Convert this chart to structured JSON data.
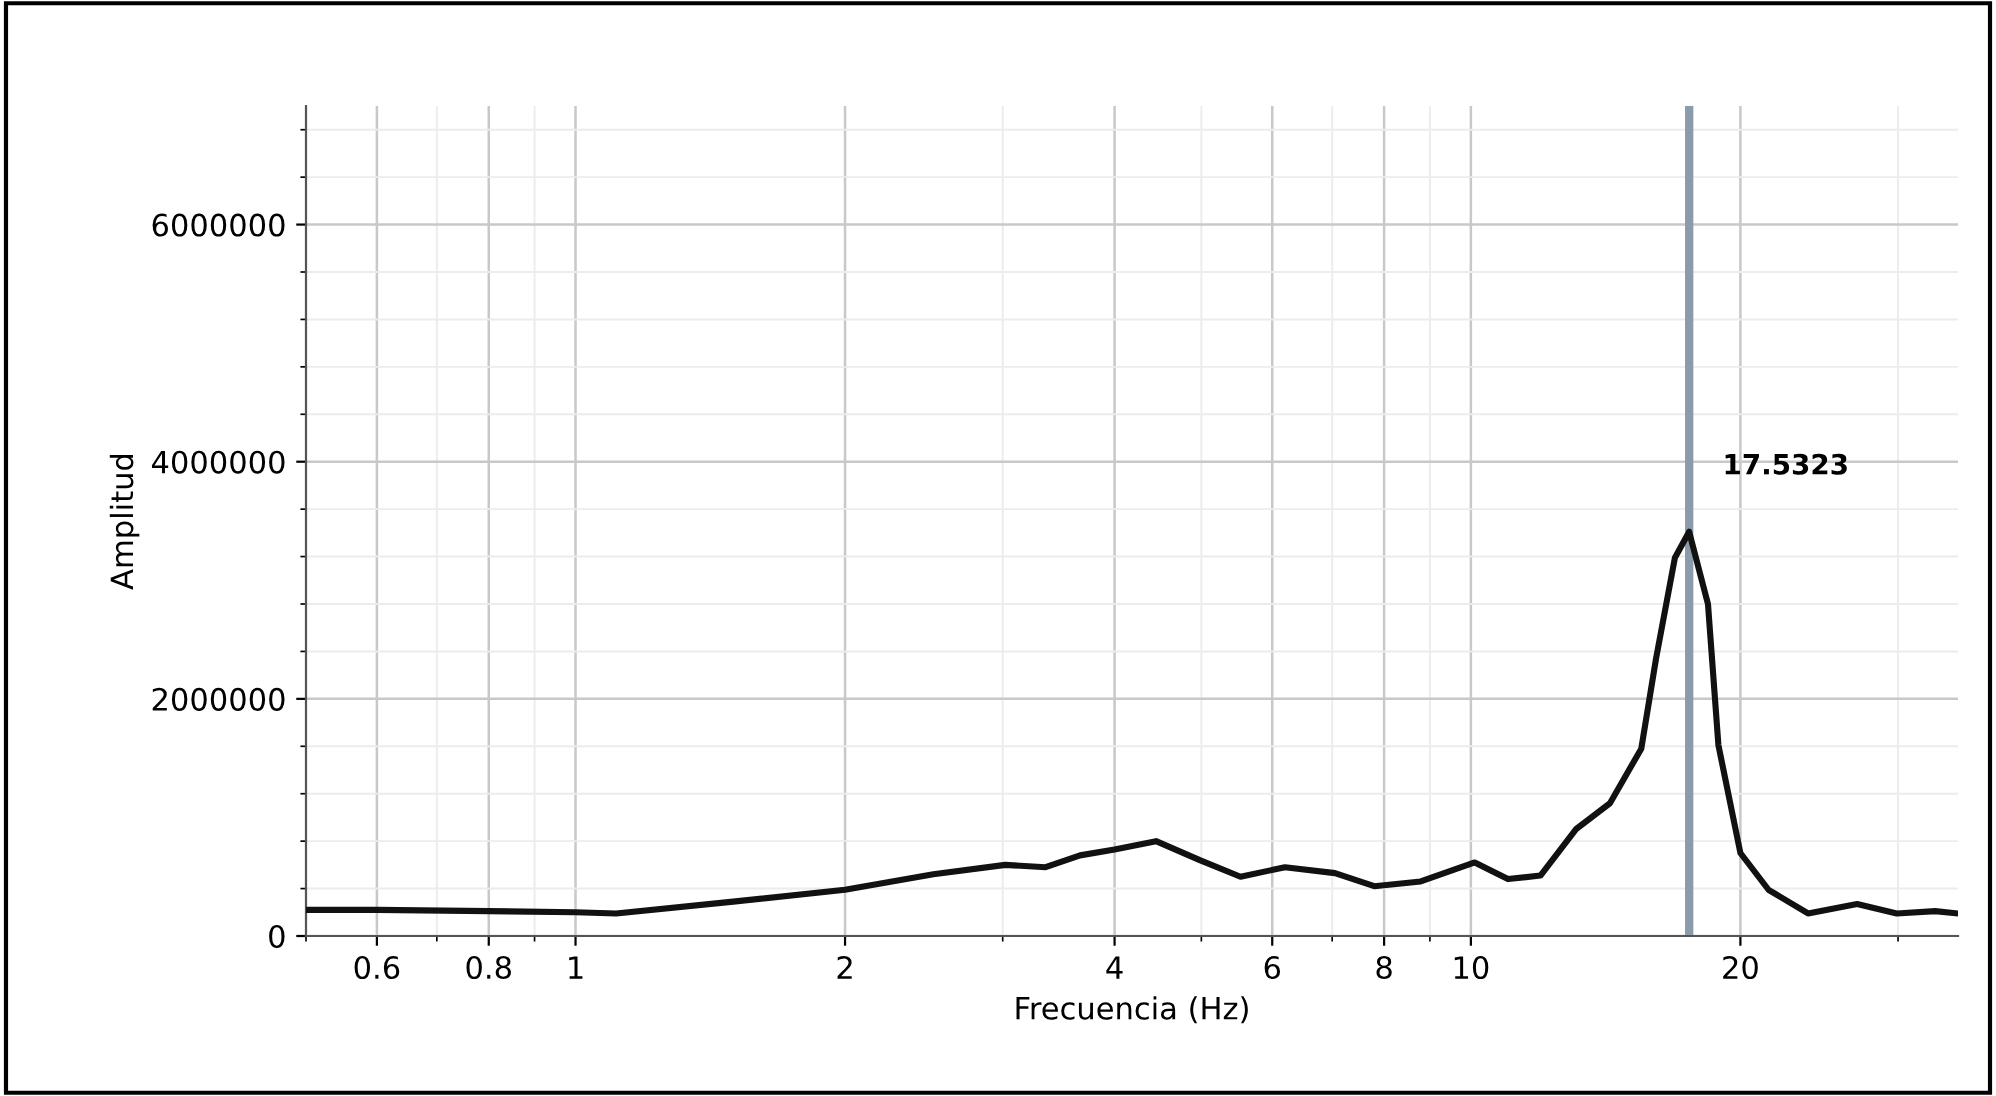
{
  "chart_data": {
    "type": "line",
    "xlabel": "Frecuencia (Hz)",
    "ylabel": "Amplitud",
    "log": "x",
    "xlim": [
      0.5,
      35
    ],
    "ylim": [
      0,
      7000000
    ],
    "xticks": [
      0.6,
      0.8,
      1,
      2,
      4,
      6,
      8,
      10,
      20
    ],
    "yticks": [
      0,
      2000000,
      4000000,
      6000000
    ],
    "grid": true,
    "marker": "none",
    "line_style": "solid",
    "series": [
      {
        "color": "#111111",
        "x": [
          0.5,
          0.6,
          0.8,
          1.0,
          1.11,
          1.5,
          2.0,
          2.51,
          3.02,
          3.35,
          3.66,
          4.0,
          4.45,
          4.98,
          5.53,
          6.2,
          7.05,
          7.8,
          8.79,
          10.1,
          11.0,
          11.96,
          13.1,
          14.3,
          15.5,
          16.1,
          16.9,
          17.53,
          18.4,
          18.9,
          20.0,
          21.5,
          23.8,
          27.0,
          29.9,
          33.0,
          35.0
        ],
        "values": [
          220000,
          220000,
          210000,
          200000,
          190000,
          290000,
          390000,
          520000,
          600000,
          580000,
          680000,
          730000,
          800000,
          640000,
          500000,
          580000,
          530000,
          420000,
          460000,
          620000,
          480000,
          510000,
          900000,
          1120000,
          1580000,
          2340000,
          3190000,
          3410000,
          2800000,
          1610000,
          700000,
          390000,
          190000,
          270000,
          190000,
          210000,
          190000
        ]
      }
    ],
    "ref_lines": [
      {
        "axis": "x",
        "value": 17.5323,
        "label": "17.5323",
        "color": "#8a9cab"
      }
    ]
  }
}
